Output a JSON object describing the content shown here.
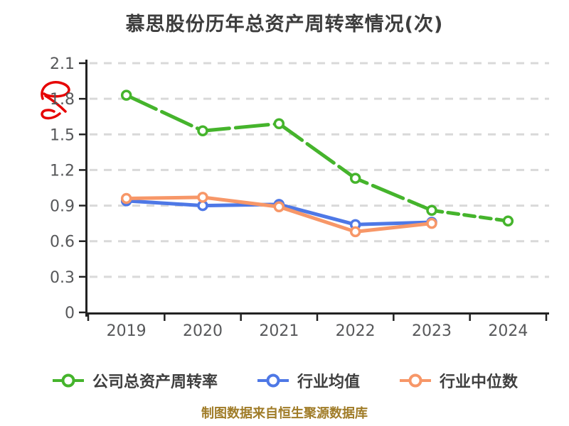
{
  "title": "慕思股份历年总资产周转率情况(次)",
  "caption": "制图数据来自恒生聚源数据库",
  "colors": {
    "company": "#45b42c",
    "industry_mean": "#4e78e6",
    "industry_median": "#f79768",
    "grid": "#d9d9d9",
    "axis": "#222222",
    "tick_label": "#57585a",
    "title_text": "#3d3d3d",
    "caption_text": "#a07c28",
    "watermark": "#e60000"
  },
  "chart_data": {
    "type": "line",
    "title": "慕思股份历年总资产周转率情况(次)",
    "categories": [
      "2019",
      "2020",
      "2021",
      "2022",
      "2023",
      "2024"
    ],
    "series": [
      {
        "key": "company",
        "name": "公司总资产周转率",
        "color": "#45b42c",
        "values": [
          1.83,
          1.53,
          1.59,
          1.13,
          0.86,
          0.77
        ],
        "line_style": "long-dash",
        "tail_dashed": true
      },
      {
        "key": "industry-mean",
        "name": "行业均值",
        "color": "#4e78e6",
        "values": [
          0.94,
          0.9,
          0.91,
          0.74,
          0.76,
          null
        ],
        "line_style": "solid",
        "tail_dashed": false
      },
      {
        "key": "industry-median",
        "name": "行业中位数",
        "color": "#f79768",
        "values": [
          0.96,
          0.97,
          0.89,
          0.68,
          0.75,
          null
        ],
        "line_style": "solid",
        "tail_dashed": false
      }
    ],
    "xlabel": "",
    "ylabel": "",
    "ylim": [
      0,
      2.1
    ],
    "yticks": [
      0,
      0.3,
      0.6,
      0.9,
      1.2,
      1.5,
      1.8,
      2.1
    ],
    "grid": "horizontal-dashed",
    "legend_position": "bottom"
  }
}
